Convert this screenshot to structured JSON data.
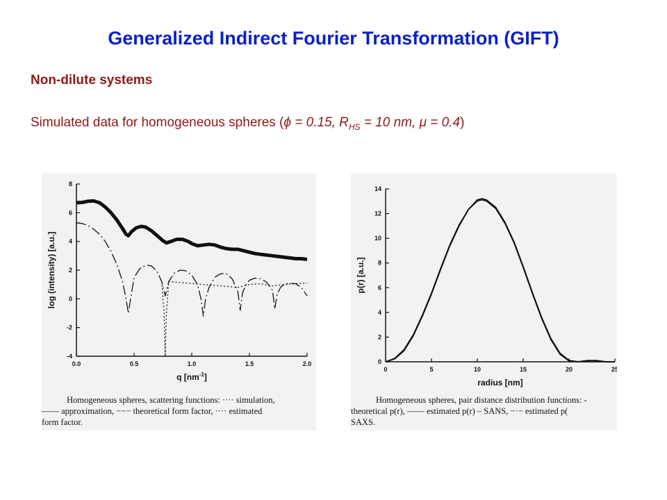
{
  "slide": {
    "title": "Generalized Indirect Fourier Transformation (GIFT)",
    "subtitle": "Non-dilute systems",
    "desc_prefix": "Simulated data for homogeneous spheres (",
    "phi": "ϕ",
    "phi_val": " = 0.15, R",
    "rsub": "HS",
    "r_val": " = 10 nm, ",
    "mu": "μ",
    "mu_val": " = 0.4",
    "desc_suffix": ")"
  },
  "captions": {
    "left": {
      "line1": "Homogeneous spheres, scattering functions: ···· simulation,",
      "line2": "—— approximation, −−− theoretical form factor, ···· estimated",
      "line3": "form factor."
    },
    "right": {
      "line1": "Homogeneous spheres, pair distance distribution functions: -",
      "line2": "theoretical p(r), —— estimated p(r) – SANS, −·− estimated p(",
      "line3": "SAXS."
    }
  },
  "chart_data": [
    {
      "type": "line",
      "xlabel": "q [nm",
      "xlabel_sup": "-1",
      "xlabel_end": "]",
      "ylabel": "log (intensity) [a.u.]",
      "xlim": [
        0,
        2.0
      ],
      "ylim": [
        -4,
        8
      ],
      "xticks": [
        "0.0",
        "0.5",
        "1.0",
        "1.5",
        "2.0"
      ],
      "xtick_values": [
        0,
        0.5,
        1.0,
        1.5,
        2.0
      ],
      "yticks": [
        "8",
        "6",
        "4",
        "2",
        "0",
        "-2",
        "-4"
      ],
      "ytick_values": [
        8,
        6,
        4,
        2,
        0,
        -2,
        -4
      ],
      "series": [
        {
          "style": "simulation-thick",
          "x": [
            0.0,
            0.05,
            0.1,
            0.15,
            0.2,
            0.25,
            0.3,
            0.35,
            0.4,
            0.43,
            0.45,
            0.48,
            0.52,
            0.56,
            0.6,
            0.65,
            0.7,
            0.75,
            0.78,
            0.82,
            0.87,
            0.92,
            0.97,
            1.0,
            1.05,
            1.1,
            1.15,
            1.2,
            1.25,
            1.3,
            1.35,
            1.4,
            1.45,
            1.5,
            1.55,
            1.6,
            1.65,
            1.7,
            1.75,
            1.8,
            1.85,
            1.9,
            1.95,
            2.0
          ],
          "y": [
            6.7,
            6.72,
            6.8,
            6.82,
            6.7,
            6.4,
            6.0,
            5.5,
            4.9,
            4.5,
            4.4,
            4.7,
            4.95,
            5.05,
            5.0,
            4.75,
            4.4,
            4.05,
            3.9,
            4.0,
            4.15,
            4.15,
            4.0,
            3.85,
            3.7,
            3.75,
            3.8,
            3.75,
            3.6,
            3.5,
            3.45,
            3.45,
            3.35,
            3.25,
            3.15,
            3.1,
            3.05,
            3.0,
            2.95,
            2.9,
            2.85,
            2.8,
            2.8,
            2.75
          ]
        },
        {
          "style": "theoretical-dashed",
          "x": [
            0.0,
            0.05,
            0.1,
            0.15,
            0.2,
            0.25,
            0.3,
            0.35,
            0.4,
            0.43,
            0.45,
            0.47,
            0.5,
            0.55,
            0.6,
            0.65,
            0.7,
            0.74,
            0.77,
            0.8,
            0.85,
            0.9,
            0.95,
            1.0,
            1.05,
            1.08,
            1.1,
            1.12,
            1.15,
            1.2,
            1.25,
            1.3,
            1.35,
            1.4,
            1.42,
            1.44,
            1.47,
            1.5,
            1.55,
            1.6,
            1.65,
            1.7,
            1.72,
            1.74,
            1.77,
            1.8,
            1.85,
            1.9,
            1.95,
            2.0
          ],
          "y": [
            5.3,
            5.25,
            5.1,
            4.85,
            4.5,
            4.0,
            3.3,
            2.4,
            1.2,
            0.0,
            -1.0,
            0.0,
            1.5,
            2.1,
            2.35,
            2.3,
            1.9,
            1.2,
            0.2,
            1.2,
            1.8,
            2.0,
            1.95,
            1.65,
            1.0,
            0.0,
            -1.2,
            0.0,
            0.8,
            1.5,
            1.75,
            1.75,
            1.4,
            0.5,
            -0.8,
            0.4,
            1.0,
            1.3,
            1.45,
            1.4,
            1.15,
            0.6,
            -0.7,
            0.3,
            0.8,
            1.0,
            1.1,
            1.05,
            0.8,
            0.2
          ]
        },
        {
          "style": "estimated-dotted",
          "x": [
            0.74,
            0.76,
            0.77,
            0.78,
            0.8,
            1.4,
            1.5,
            1.6,
            1.7,
            1.8,
            1.9,
            2.0
          ],
          "y": [
            1.2,
            -1.0,
            -4.0,
            -1.0,
            1.2,
            0.8,
            1.0,
            1.05,
            0.9,
            1.0,
            1.05,
            1.1
          ]
        }
      ]
    },
    {
      "type": "line",
      "xlabel": "radius [nm]",
      "ylabel": "p(r) [a.u.]",
      "xlim": [
        0,
        25
      ],
      "ylim": [
        0,
        14
      ],
      "xticks": [
        "0",
        "5",
        "10",
        "15",
        "20",
        "25"
      ],
      "xtick_values": [
        0,
        5,
        10,
        15,
        20,
        25
      ],
      "yticks": [
        "14",
        "12",
        "10",
        "8",
        "6",
        "4",
        "2",
        "0"
      ],
      "ytick_values": [
        14,
        12,
        10,
        8,
        6,
        4,
        2,
        0
      ],
      "series": [
        {
          "style": "theoretical",
          "x": [
            0,
            1,
            2,
            3,
            4,
            5,
            6,
            7,
            8,
            9,
            10,
            10.5,
            11,
            12,
            13,
            14,
            15,
            16,
            17,
            18,
            19,
            20,
            21,
            22,
            23,
            25
          ],
          "y": [
            0,
            0.3,
            1.0,
            2.2,
            3.8,
            5.6,
            7.6,
            9.5,
            11.1,
            12.3,
            13.0,
            13.1,
            13.0,
            12.4,
            11.2,
            9.6,
            7.6,
            5.5,
            3.5,
            1.8,
            0.6,
            0.05,
            0,
            0,
            0,
            0
          ]
        },
        {
          "style": "estimated",
          "x": [
            0,
            1,
            2,
            3,
            4,
            5,
            6,
            7,
            8,
            9,
            10,
            10.5,
            11,
            12,
            13,
            14,
            15,
            16,
            17,
            18,
            19,
            20,
            21,
            22,
            23,
            24,
            25
          ],
          "y": [
            0,
            0.25,
            0.9,
            2.1,
            3.7,
            5.5,
            7.5,
            9.4,
            11.0,
            12.3,
            13.1,
            13.2,
            13.1,
            12.5,
            11.3,
            9.7,
            7.7,
            5.6,
            3.6,
            1.9,
            0.7,
            0.1,
            0.0,
            0.1,
            0.1,
            0.0,
            0.0
          ]
        }
      ]
    }
  ]
}
